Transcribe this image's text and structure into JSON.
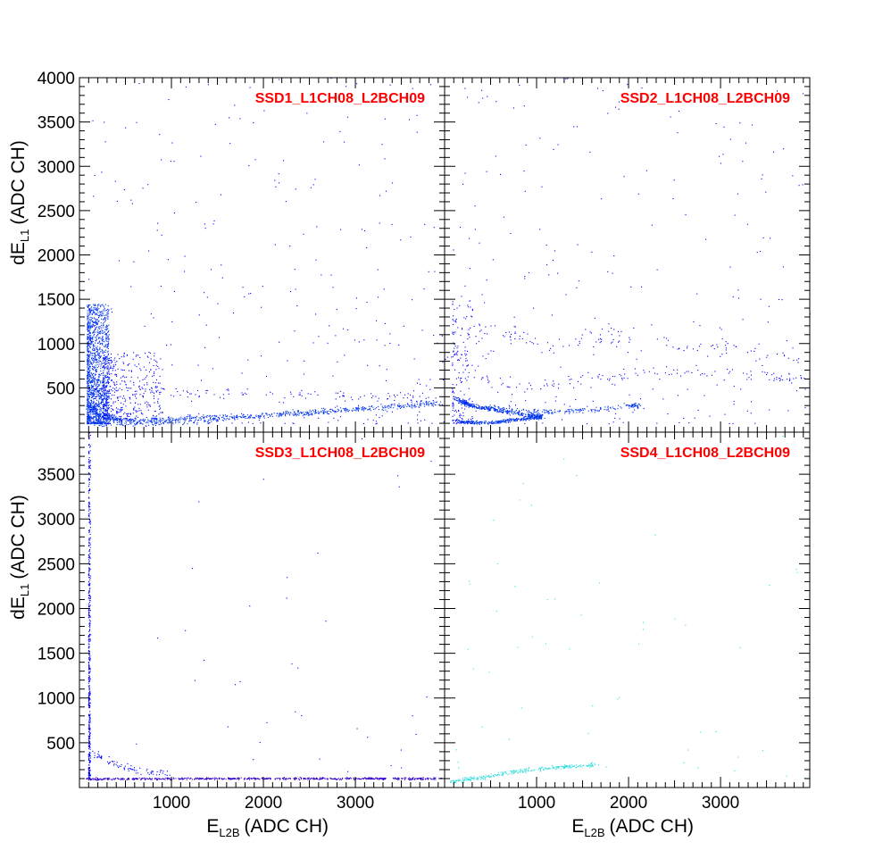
{
  "colors": {
    "title": "#ff0000",
    "dense": "#0033ee",
    "sparse": "#0000ff",
    "purple": "#3300cc",
    "cyan": "#33dddd"
  },
  "chart_data": [
    {
      "type": "heatmap",
      "pad": "top-left",
      "title": "SSD1_L1CH08_L2BCH09",
      "xlabel": "",
      "ylabel": "dE",
      "ylabel_sub": "L1",
      "ylabel_unit": "(ADC CH)",
      "xlim": [
        0,
        3970
      ],
      "ylim": [
        0,
        4000
      ],
      "xticks": [],
      "yticks": [
        "500",
        "1000",
        "1500",
        "2000",
        "2500",
        "3000",
        "3500",
        "4000"
      ],
      "bands": [
        {
          "kind": "cloud",
          "x": [
            80,
            320
          ],
          "y": [
            100,
            1450
          ],
          "n": 1500,
          "color": "dense"
        },
        {
          "kind": "cloud",
          "x": [
            250,
            900
          ],
          "y": [
            150,
            900
          ],
          "n": 400,
          "color": "sparse"
        },
        {
          "kind": "curve",
          "points": [
            [
              100,
              300
            ],
            [
              200,
              200
            ],
            [
              450,
              140
            ],
            [
              900,
              140
            ],
            [
              1400,
              170
            ],
            [
              2000,
              190
            ],
            [
              2600,
              230
            ],
            [
              3200,
              280
            ],
            [
              3900,
              340
            ]
          ],
          "n": 600,
          "spread": 15,
          "color": "dense"
        },
        {
          "kind": "curve",
          "points": [
            [
              120,
              100
            ],
            [
              500,
              100
            ],
            [
              1000,
              110
            ],
            [
              1500,
              140
            ],
            [
              2200,
              220
            ],
            [
              2900,
              260
            ],
            [
              3900,
              320
            ]
          ],
          "n": 300,
          "spread": 15,
          "color": "dense"
        },
        {
          "kind": "curve",
          "points": [
            [
              150,
              500
            ],
            [
              1000,
              450
            ],
            [
              2000,
              440
            ],
            [
              3000,
              400
            ],
            [
              3900,
              380
            ]
          ],
          "n": 120,
          "spread": 30,
          "color": "sparse"
        },
        {
          "kind": "uniform",
          "x": [
            80,
            3970
          ],
          "y": [
            100,
            4000
          ],
          "n": 300,
          "color": "sparse"
        }
      ]
    },
    {
      "type": "heatmap",
      "pad": "top-right",
      "title": "SSD2_L1CH08_L2BCH09",
      "xlabel": "",
      "ylabel": "",
      "xlim": [
        0,
        3970
      ],
      "ylim": [
        0,
        4000
      ],
      "xticks": [],
      "yticks": [],
      "bands": [
        {
          "kind": "curve",
          "points": [
            [
              120,
              380
            ],
            [
              300,
              300
            ],
            [
              600,
              250
            ],
            [
              900,
              200
            ],
            [
              1050,
              180
            ]
          ],
          "n": 400,
          "spread": 12,
          "color": "dense"
        },
        {
          "kind": "curve",
          "points": [
            [
              150,
              120
            ],
            [
              500,
              110
            ],
            [
              800,
              150
            ],
            [
              1050,
              170
            ]
          ],
          "n": 300,
          "spread": 10,
          "color": "dense"
        },
        {
          "kind": "curve",
          "points": [
            [
              500,
              300
            ],
            [
              1000,
              230
            ],
            [
              1500,
              250
            ],
            [
              2000,
              300
            ],
            [
              2100,
              310
            ]
          ],
          "n": 200,
          "spread": 15,
          "color": "dense"
        },
        {
          "kind": "curve",
          "points": [
            [
              100,
              900
            ],
            [
              400,
              600
            ],
            [
              900,
              500
            ],
            [
              1600,
              600
            ],
            [
              2400,
              700
            ],
            [
              3300,
              650
            ],
            [
              3950,
              600
            ]
          ],
          "n": 150,
          "spread": 40,
          "color": "sparse"
        },
        {
          "kind": "curve",
          "points": [
            [
              400,
              1200
            ],
            [
              1000,
              1000
            ],
            [
              1800,
              1100
            ],
            [
              2800,
              950
            ],
            [
              3950,
              850
            ]
          ],
          "n": 120,
          "spread": 60,
          "color": "sparse"
        },
        {
          "kind": "cloud",
          "x": [
            80,
            300
          ],
          "y": [
            100,
            1500
          ],
          "n": 150,
          "color": "sparse"
        },
        {
          "kind": "uniform",
          "x": [
            80,
            3970
          ],
          "y": [
            100,
            4000
          ],
          "n": 250,
          "color": "sparse"
        }
      ]
    },
    {
      "type": "heatmap",
      "pad": "bottom-left",
      "title": "SSD3_L1CH08_L2BCH09",
      "xlabel": "E",
      "xlabel_sub": "L2B",
      "xlabel_unit": "(ADC CH)",
      "ylabel": "dE",
      "ylabel_sub": "L1",
      "ylabel_unit": "(ADC CH)",
      "xlim": [
        0,
        3970
      ],
      "ylim": [
        0,
        3970
      ],
      "xticks": [
        "1000",
        "2000",
        "3000"
      ],
      "yticks": [
        "500",
        "1000",
        "1500",
        "2000",
        "2500",
        "3000",
        "3500"
      ],
      "bands": [
        {
          "kind": "cloud",
          "x": [
            95,
            115
          ],
          "y": [
            100,
            3970
          ],
          "n": 500,
          "color": "sparse"
        },
        {
          "kind": "curve",
          "points": [
            [
              80,
              100
            ],
            [
              1000,
              105
            ],
            [
              2000,
              105
            ],
            [
              3000,
              105
            ],
            [
              3950,
              105
            ]
          ],
          "n": 700,
          "spread": 6,
          "color": "purple"
        },
        {
          "kind": "curve",
          "points": [
            [
              150,
              400
            ],
            [
              300,
              300
            ],
            [
              600,
              200
            ],
            [
              1000,
              150
            ]
          ],
          "n": 80,
          "spread": 20,
          "color": "sparse"
        },
        {
          "kind": "uniform",
          "x": [
            80,
            3970
          ],
          "y": [
            100,
            3970
          ],
          "n": 40,
          "color": "sparse"
        }
      ]
    },
    {
      "type": "heatmap",
      "pad": "bottom-right",
      "title": "SSD4_L1CH08_L2BCH09",
      "xlabel": "E",
      "xlabel_sub": "L2B",
      "xlabel_unit": "(ADC CH)",
      "ylabel": "",
      "xlim": [
        0,
        3970
      ],
      "ylim": [
        0,
        3970
      ],
      "xticks": [
        "1000",
        "2000",
        "3000"
      ],
      "yticks": [],
      "bands": [
        {
          "kind": "curve",
          "points": [
            [
              80,
              70
            ],
            [
              400,
              120
            ],
            [
              800,
              190
            ],
            [
              1200,
              230
            ],
            [
              1650,
              260
            ]
          ],
          "n": 300,
          "spread": 12,
          "color": "cyan"
        },
        {
          "kind": "uniform",
          "x": [
            80,
            3970
          ],
          "y": [
            100,
            3970
          ],
          "n": 60,
          "color": "cyan"
        }
      ]
    }
  ]
}
